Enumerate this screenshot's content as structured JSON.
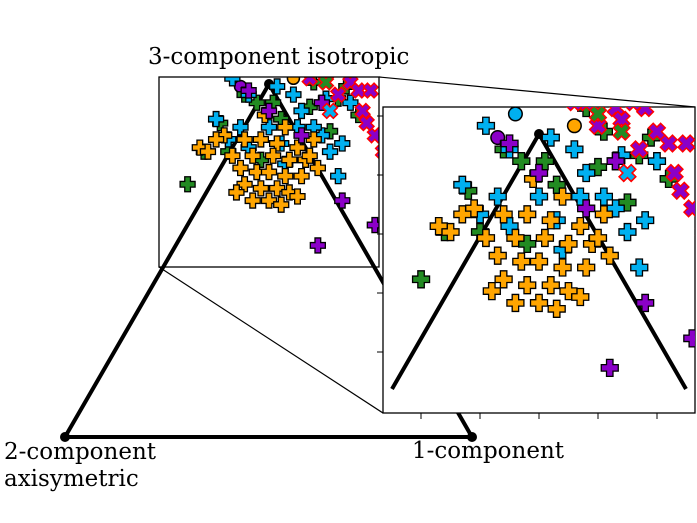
{
  "chart_data": {
    "type": "scatter",
    "title": "",
    "labels": {
      "top": "3-component isotropic",
      "left_line1": "2-component",
      "left_line2": "axisymetric",
      "right": "1-component"
    },
    "colors": {
      "orange": "#ffa500",
      "green": "#228b22",
      "blue": "#00b0f0",
      "purple": "#8b00c8",
      "red": "#ff0000",
      "magenta": "#c800a0"
    },
    "series": [
      {
        "marker": "circle",
        "color": "#00b0f0",
        "points": [
          [
            -0.04,
            0.9
          ]
        ]
      },
      {
        "marker": "circle",
        "color": "#ffa500",
        "points": [
          [
            0.06,
            0.88
          ]
        ]
      },
      {
        "marker": "circle",
        "color": "#8b00c8",
        "points": [
          [
            -0.07,
            0.86
          ]
        ]
      },
      {
        "marker": "plus",
        "color": "#228b22",
        "points": [
          [
            0.02,
            0.96
          ],
          [
            -0.01,
            0.93
          ],
          [
            0.04,
            0.94
          ],
          [
            0.08,
            0.91
          ],
          [
            -0.06,
            0.84
          ],
          [
            -0.03,
            0.82
          ],
          [
            0.01,
            0.82
          ],
          [
            0.1,
            0.81
          ],
          [
            0.13,
            0.82
          ],
          [
            0.17,
            0.83
          ],
          [
            -0.16,
            0.7
          ],
          [
            -0.1,
            0.7
          ],
          [
            0.15,
            0.75
          ],
          [
            0.22,
            0.79
          ],
          [
            -0.12,
            0.77
          ],
          [
            0.03,
            0.78
          ],
          [
            -0.2,
            0.62
          ],
          [
            -0.02,
            0.68
          ],
          [
            0.11,
            0.87
          ],
          [
            0.19,
            0.86
          ]
        ]
      },
      {
        "marker": "plus",
        "color": "#00b0f0",
        "points": [
          [
            -0.09,
            0.88
          ],
          [
            -0.05,
            0.84
          ],
          [
            0.02,
            0.86
          ],
          [
            0.06,
            0.84
          ],
          [
            0.14,
            0.83
          ],
          [
            -0.13,
            0.78
          ],
          [
            -0.07,
            0.76
          ],
          [
            0.0,
            0.76
          ],
          [
            0.07,
            0.76
          ],
          [
            0.13,
            0.74
          ],
          [
            -0.05,
            0.71
          ],
          [
            0.03,
            0.72
          ],
          [
            0.15,
            0.7
          ],
          [
            0.18,
            0.72
          ],
          [
            0.2,
            0.82
          ],
          [
            0.08,
            0.8
          ],
          [
            0.11,
            0.76
          ],
          [
            0.04,
            0.67
          ],
          [
            -0.1,
            0.73
          ],
          [
            0.17,
            0.64
          ]
        ]
      },
      {
        "marker": "plus",
        "color": "#ffa500",
        "points": [
          [
            -0.11,
            0.74
          ],
          [
            -0.06,
            0.73
          ],
          [
            -0.02,
            0.73
          ],
          [
            0.02,
            0.72
          ],
          [
            0.07,
            0.71
          ],
          [
            -0.09,
            0.69
          ],
          [
            -0.04,
            0.69
          ],
          [
            0.01,
            0.69
          ],
          [
            0.05,
            0.68
          ],
          [
            0.09,
            0.68
          ],
          [
            -0.07,
            0.66
          ],
          [
            -0.03,
            0.65
          ],
          [
            0.0,
            0.65
          ],
          [
            0.04,
            0.64
          ],
          [
            0.08,
            0.64
          ],
          [
            -0.06,
            0.62
          ],
          [
            -0.02,
            0.61
          ],
          [
            0.02,
            0.61
          ],
          [
            0.05,
            0.6
          ],
          [
            -0.04,
            0.58
          ],
          [
            0.0,
            0.58
          ],
          [
            0.03,
            0.57
          ],
          [
            -0.17,
            0.71
          ],
          [
            -0.13,
            0.73
          ],
          [
            -0.01,
            0.79
          ],
          [
            0.04,
            0.76
          ],
          [
            0.1,
            0.69
          ],
          [
            -0.08,
            0.6
          ],
          [
            0.07,
            0.59
          ],
          [
            0.11,
            0.73
          ],
          [
            -0.15,
            0.7
          ],
          [
            0.12,
            0.66
          ]
        ]
      },
      {
        "marker": "plus",
        "color": "#8b00c8",
        "points": [
          [
            0.13,
            0.82
          ],
          [
            0.18,
            0.58
          ],
          [
            0.26,
            0.52
          ],
          [
            0.31,
            0.48
          ],
          [
            0.12,
            0.47
          ],
          [
            -0.05,
            0.85
          ],
          [
            0.0,
            0.8
          ],
          [
            0.08,
            0.74
          ],
          [
            0.3,
            0.56
          ]
        ]
      },
      {
        "marker": "x",
        "color": "#ff0000",
        "fill": "#8b00c8",
        "points": [
          [
            0.08,
            0.92
          ],
          [
            0.13,
            0.91
          ],
          [
            0.16,
            0.92
          ],
          [
            0.18,
            0.91
          ],
          [
            0.14,
            0.89
          ],
          [
            0.1,
            0.88
          ],
          [
            0.2,
            0.87
          ],
          [
            0.22,
            0.85
          ],
          [
            0.25,
            0.85
          ],
          [
            0.17,
            0.84
          ],
          [
            0.23,
            0.8
          ],
          [
            0.26,
            0.74
          ],
          [
            0.28,
            0.7
          ],
          [
            0.3,
            0.66
          ],
          [
            0.15,
            0.8
          ],
          [
            0.06,
            0.92
          ],
          [
            0.24,
            0.77
          ]
        ]
      },
      {
        "marker": "x",
        "color": "#ff0000",
        "fill": "#228b22",
        "points": [
          [
            0.1,
            0.9
          ],
          [
            0.14,
            0.87
          ]
        ]
      },
      {
        "marker": "x",
        "color": "#ff0000",
        "fill": "#00b0f0",
        "points": [
          [
            0.15,
            0.8
          ]
        ]
      }
    ]
  }
}
